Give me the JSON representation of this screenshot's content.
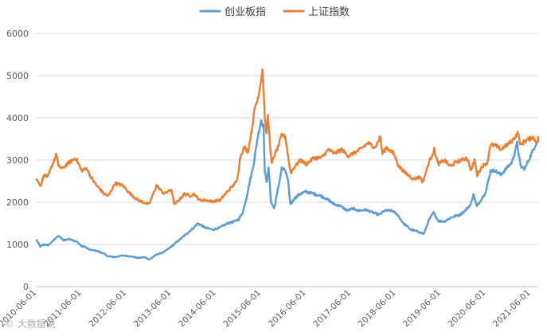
{
  "chart_data": {
    "type": "line",
    "title": "",
    "xlabel": "",
    "ylabel": "",
    "ylim": [
      0,
      6000
    ],
    "y_ticks": [
      "0",
      "1000",
      "2000",
      "3000",
      "4000",
      "5000",
      "6000"
    ],
    "y_tick_values": [
      0,
      1000,
      2000,
      3000,
      4000,
      5000,
      6000
    ],
    "x_ticks": [
      "2010-06-01",
      "2011-06-01",
      "2012-06-01",
      "2013-06-01",
      "2014-06-01",
      "2015-06-01",
      "2016-06-01",
      "2017-06-01",
      "2018-06-01",
      "2019-06-01",
      "2020-06-01",
      "2021-06-01"
    ],
    "xlim": [
      "2010-06-01",
      "2021-08-01"
    ],
    "grid": "horizontal",
    "legend_position": "top-center",
    "series": [
      {
        "name": "创业板指",
        "color": "#5B9BD5",
        "points": [
          [
            "2010-06-01",
            1100
          ],
          [
            "2010-07-01",
            950
          ],
          [
            "2010-08-01",
            1000
          ],
          [
            "2010-09-01",
            980
          ],
          [
            "2010-10-01",
            1050
          ],
          [
            "2010-11-01",
            1150
          ],
          [
            "2010-12-01",
            1200
          ],
          [
            "2011-01-01",
            1100
          ],
          [
            "2011-03-01",
            1130
          ],
          [
            "2011-05-01",
            1050
          ],
          [
            "2011-06-01",
            960
          ],
          [
            "2011-07-01",
            940
          ],
          [
            "2011-08-01",
            880
          ],
          [
            "2011-10-01",
            850
          ],
          [
            "2011-12-01",
            780
          ],
          [
            "2012-01-01",
            720
          ],
          [
            "2012-03-01",
            700
          ],
          [
            "2012-05-01",
            740
          ],
          [
            "2012-07-01",
            720
          ],
          [
            "2012-09-01",
            680
          ],
          [
            "2012-11-01",
            700
          ],
          [
            "2012-12-01",
            640
          ],
          [
            "2013-02-01",
            760
          ],
          [
            "2013-04-01",
            820
          ],
          [
            "2013-06-01",
            950
          ],
          [
            "2013-08-01",
            1100
          ],
          [
            "2013-10-01",
            1250
          ],
          [
            "2013-12-01",
            1400
          ],
          [
            "2014-01-01",
            1500
          ],
          [
            "2014-03-01",
            1400
          ],
          [
            "2014-05-01",
            1350
          ],
          [
            "2014-07-01",
            1400
          ],
          [
            "2014-09-01",
            1500
          ],
          [
            "2014-11-01",
            1550
          ],
          [
            "2014-12-01",
            1600
          ],
          [
            "2015-01-01",
            1750
          ],
          [
            "2015-02-01",
            2100
          ],
          [
            "2015-03-01",
            2500
          ],
          [
            "2015-04-01",
            2900
          ],
          [
            "2015-05-01",
            3500
          ],
          [
            "2015-06-01",
            3950
          ],
          [
            "2015-06-20",
            3800
          ],
          [
            "2015-07-01",
            2700
          ],
          [
            "2015-07-15",
            2500
          ],
          [
            "2015-08-01",
            2800
          ],
          [
            "2015-08-20",
            2000
          ],
          [
            "2015-09-15",
            1850
          ],
          [
            "2015-10-15",
            2300
          ],
          [
            "2015-11-15",
            2800
          ],
          [
            "2015-12-15",
            2750
          ],
          [
            "2016-01-05",
            2500
          ],
          [
            "2016-01-25",
            1950
          ],
          [
            "2016-03-01",
            2100
          ],
          [
            "2016-04-15",
            2200
          ],
          [
            "2016-06-01",
            2250
          ],
          [
            "2016-08-01",
            2200
          ],
          [
            "2016-10-01",
            2150
          ],
          [
            "2016-12-01",
            2050
          ],
          [
            "2017-01-15",
            1950
          ],
          [
            "2017-03-01",
            1920
          ],
          [
            "2017-05-01",
            1800
          ],
          [
            "2017-06-15",
            1850
          ],
          [
            "2017-08-01",
            1800
          ],
          [
            "2017-10-01",
            1820
          ],
          [
            "2017-12-01",
            1750
          ],
          [
            "2018-01-15",
            1700
          ],
          [
            "2018-03-01",
            1800
          ],
          [
            "2018-05-01",
            1800
          ],
          [
            "2018-06-15",
            1700
          ],
          [
            "2018-08-01",
            1500
          ],
          [
            "2018-10-01",
            1350
          ],
          [
            "2018-12-01",
            1300
          ],
          [
            "2019-01-15",
            1250
          ],
          [
            "2019-02-20",
            1550
          ],
          [
            "2019-04-01",
            1750
          ],
          [
            "2019-05-15",
            1550
          ],
          [
            "2019-07-01",
            1550
          ],
          [
            "2019-09-01",
            1650
          ],
          [
            "2019-11-01",
            1700
          ],
          [
            "2019-12-15",
            1800
          ],
          [
            "2020-02-01",
            1950
          ],
          [
            "2020-02-20",
            2200
          ],
          [
            "2020-03-20",
            1900
          ],
          [
            "2020-05-01",
            2100
          ],
          [
            "2020-06-01",
            2250
          ],
          [
            "2020-07-10",
            2750
          ],
          [
            "2020-08-15",
            2750
          ],
          [
            "2020-10-01",
            2650
          ],
          [
            "2020-11-15",
            2800
          ],
          [
            "2020-12-31",
            2950
          ],
          [
            "2021-02-10",
            3400
          ],
          [
            "2021-03-10",
            2850
          ],
          [
            "2021-04-15",
            2800
          ],
          [
            "2021-05-15",
            3000
          ],
          [
            "2021-06-15",
            3200
          ],
          [
            "2021-07-15",
            3400
          ],
          [
            "2021-08-01",
            3450
          ]
        ]
      },
      {
        "name": "上证指数",
        "color": "#ED7D31",
        "points": [
          [
            "2010-06-01",
            2550
          ],
          [
            "2010-06-20",
            2450
          ],
          [
            "2010-07-05",
            2400
          ],
          [
            "2010-08-01",
            2650
          ],
          [
            "2010-09-01",
            2600
          ],
          [
            "2010-10-15",
            2950
          ],
          [
            "2010-11-10",
            3150
          ],
          [
            "2010-11-25",
            2850
          ],
          [
            "2011-01-01",
            2800
          ],
          [
            "2011-02-01",
            2900
          ],
          [
            "2011-04-15",
            3050
          ],
          [
            "2011-06-01",
            2750
          ],
          [
            "2011-07-15",
            2800
          ],
          [
            "2011-08-15",
            2600
          ],
          [
            "2011-10-01",
            2400
          ],
          [
            "2011-12-01",
            2200
          ],
          [
            "2012-01-05",
            2150
          ],
          [
            "2012-03-01",
            2450
          ],
          [
            "2012-05-01",
            2400
          ],
          [
            "2012-07-01",
            2200
          ],
          [
            "2012-09-01",
            2050
          ],
          [
            "2012-12-01",
            1950
          ],
          [
            "2013-02-01",
            2400
          ],
          [
            "2013-04-01",
            2200
          ],
          [
            "2013-06-01",
            2300
          ],
          [
            "2013-06-25",
            1950
          ],
          [
            "2013-08-01",
            2050
          ],
          [
            "2013-09-15",
            2200
          ],
          [
            "2013-11-01",
            2150
          ],
          [
            "2013-12-01",
            2200
          ],
          [
            "2014-01-15",
            2050
          ],
          [
            "2014-03-01",
            2050
          ],
          [
            "2014-05-01",
            2020
          ],
          [
            "2014-07-01",
            2050
          ],
          [
            "2014-08-15",
            2200
          ],
          [
            "2014-10-01",
            2350
          ],
          [
            "2014-11-15",
            2500
          ],
          [
            "2014-12-15",
            3100
          ],
          [
            "2015-01-15",
            3300
          ],
          [
            "2015-02-15",
            3200
          ],
          [
            "2015-03-15",
            3700
          ],
          [
            "2015-04-15",
            4300
          ],
          [
            "2015-05-01",
            4400
          ],
          [
            "2015-05-25",
            4800
          ],
          [
            "2015-06-12",
            5150
          ],
          [
            "2015-07-01",
            4000
          ],
          [
            "2015-07-15",
            3600
          ],
          [
            "2015-07-25",
            4100
          ],
          [
            "2015-08-25",
            2900
          ],
          [
            "2015-09-15",
            3100
          ],
          [
            "2015-10-15",
            3300
          ],
          [
            "2015-11-15",
            3600
          ],
          [
            "2015-12-15",
            3550
          ],
          [
            "2016-01-15",
            2900
          ],
          [
            "2016-01-28",
            2700
          ],
          [
            "2016-03-01",
            2850
          ],
          [
            "2016-04-15",
            3000
          ],
          [
            "2016-06-01",
            2900
          ],
          [
            "2016-08-01",
            3050
          ],
          [
            "2016-10-01",
            3050
          ],
          [
            "2016-11-30",
            3250
          ],
          [
            "2017-01-15",
            3150
          ],
          [
            "2017-03-15",
            3250
          ],
          [
            "2017-05-10",
            3100
          ],
          [
            "2017-06-15",
            3150
          ],
          [
            "2017-08-15",
            3250
          ],
          [
            "2017-10-15",
            3400
          ],
          [
            "2017-12-15",
            3300
          ],
          [
            "2018-01-25",
            3550
          ],
          [
            "2018-02-10",
            3150
          ],
          [
            "2018-03-15",
            3300
          ],
          [
            "2018-05-15",
            3150
          ],
          [
            "2018-06-25",
            2850
          ],
          [
            "2018-08-15",
            2700
          ],
          [
            "2018-10-20",
            2550
          ],
          [
            "2018-12-15",
            2600
          ],
          [
            "2019-01-04",
            2470
          ],
          [
            "2019-02-25",
            2950
          ],
          [
            "2019-04-08",
            3250
          ],
          [
            "2019-05-10",
            2900
          ],
          [
            "2019-07-01",
            3000
          ],
          [
            "2019-08-15",
            2850
          ],
          [
            "2019-10-01",
            2950
          ],
          [
            "2019-12-31",
            3050
          ],
          [
            "2020-02-03",
            2750
          ],
          [
            "2020-03-01",
            3000
          ],
          [
            "2020-03-23",
            2650
          ],
          [
            "2020-05-01",
            2850
          ],
          [
            "2020-06-15",
            2950
          ],
          [
            "2020-07-06",
            3350
          ],
          [
            "2020-08-15",
            3350
          ],
          [
            "2020-10-01",
            3250
          ],
          [
            "2020-11-15",
            3350
          ],
          [
            "2020-12-31",
            3450
          ],
          [
            "2021-02-18",
            3650
          ],
          [
            "2021-03-09",
            3350
          ],
          [
            "2021-04-15",
            3450
          ],
          [
            "2021-05-20",
            3500
          ],
          [
            "2021-06-15",
            3550
          ],
          [
            "2021-07-28",
            3400
          ],
          [
            "2021-08-01",
            3550
          ]
        ]
      }
    ]
  },
  "watermark": "© 大数据说",
  "colors": {
    "grid": "#d9d9d9",
    "axis_text": "#595959"
  }
}
